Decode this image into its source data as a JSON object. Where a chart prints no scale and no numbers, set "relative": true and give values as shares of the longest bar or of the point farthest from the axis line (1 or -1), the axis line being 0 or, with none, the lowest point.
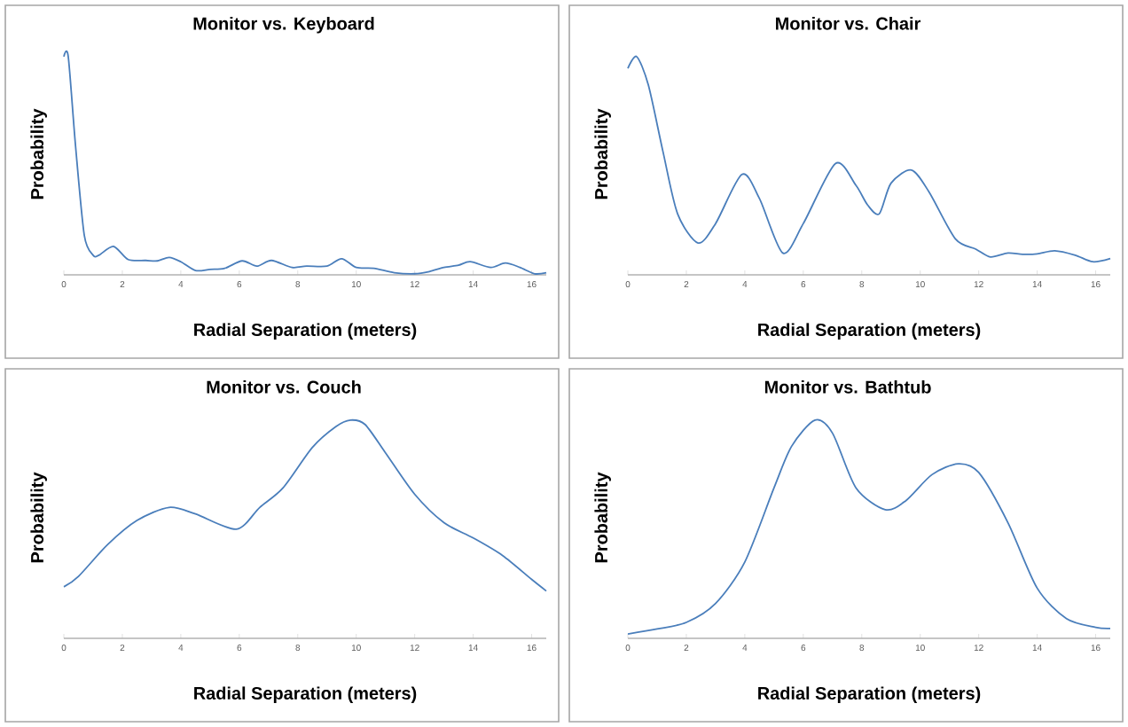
{
  "chart_data": [
    {
      "type": "line",
      "title": "Monitor vs. Keyboard",
      "xlabel": "Radial Separation (meters)",
      "ylabel": "Probability",
      "relative": true,
      "xlim": [
        0,
        16.5
      ],
      "xticks": [
        0,
        2,
        4,
        6,
        8,
        10,
        12,
        14,
        16
      ],
      "x": [
        0,
        0.15,
        0.4,
        0.7,
        1.0,
        1.2,
        1.7,
        2.2,
        2.8,
        3.2,
        3.6,
        4.0,
        4.5,
        5.0,
        5.5,
        6.1,
        6.6,
        7.1,
        7.8,
        8.3,
        9.0,
        9.5,
        10.0,
        10.6,
        11.3,
        12.0,
        12.5,
        13.0,
        13.5,
        13.9,
        14.6,
        15.1,
        15.6,
        16.1,
        16.5
      ],
      "series": [
        {
          "color": "#4a7ebb",
          "values": [
            1.0,
            1.0,
            0.59,
            0.18,
            0.09,
            0.09,
            0.13,
            0.07,
            0.066,
            0.064,
            0.08,
            0.06,
            0.02,
            0.025,
            0.03,
            0.064,
            0.04,
            0.066,
            0.034,
            0.04,
            0.04,
            0.074,
            0.034,
            0.03,
            0.01,
            0.005,
            0.015,
            0.034,
            0.044,
            0.06,
            0.034,
            0.054,
            0.034,
            0.005,
            0.01
          ]
        }
      ]
    },
    {
      "type": "line",
      "title": "Monitor vs. Chair",
      "xlabel": "Radial Separation (meters)",
      "ylabel": "Probability",
      "relative": true,
      "xlim": [
        0,
        16.5
      ],
      "xticks": [
        0,
        2,
        4,
        6,
        8,
        10,
        12,
        14,
        16
      ],
      "x": [
        0,
        0.3,
        0.7,
        1.2,
        1.7,
        2.4,
        3.0,
        3.9,
        4.5,
        5.3,
        6.0,
        7.1,
        7.8,
        8.2,
        8.6,
        9.0,
        9.7,
        10.3,
        11.2,
        11.9,
        12.4,
        13.0,
        13.5,
        14.0,
        14.6,
        15.3,
        15.9,
        16.5
      ],
      "series": [
        {
          "color": "#4a7ebb",
          "values": [
            0.946,
            1.0,
            0.87,
            0.565,
            0.28,
            0.146,
            0.235,
            0.46,
            0.35,
            0.1,
            0.235,
            0.51,
            0.41,
            0.32,
            0.28,
            0.42,
            0.48,
            0.38,
            0.165,
            0.118,
            0.082,
            0.1,
            0.094,
            0.096,
            0.11,
            0.09,
            0.06,
            0.075
          ]
        }
      ]
    },
    {
      "type": "line",
      "title": "Monitor vs. Couch",
      "xlabel": "Radial Separation (meters)",
      "ylabel": "Probability",
      "relative": true,
      "xlim": [
        0,
        16.5
      ],
      "xticks": [
        0,
        2,
        4,
        6,
        8,
        10,
        12,
        14,
        16
      ],
      "x": [
        0,
        0.5,
        1.5,
        2.5,
        3.6,
        4.5,
        5.9,
        6.7,
        7.5,
        8.5,
        9.3,
        9.8,
        10.3,
        11.0,
        12.0,
        13.0,
        14.0,
        15.0,
        16.0,
        16.5
      ],
      "series": [
        {
          "color": "#4a7ebb",
          "values": [
            0.236,
            0.284,
            0.43,
            0.54,
            0.6,
            0.57,
            0.5,
            0.6,
            0.69,
            0.875,
            0.97,
            1.0,
            0.98,
            0.85,
            0.66,
            0.53,
            0.46,
            0.38,
            0.27,
            0.217
          ]
        }
      ]
    },
    {
      "type": "line",
      "title": "Monitor vs. Bathtub",
      "xlabel": "Radial Separation (meters)",
      "ylabel": "Probability",
      "relative": true,
      "xlim": [
        0,
        16.5
      ],
      "xticks": [
        0,
        2,
        4,
        6,
        8,
        10,
        12,
        14,
        16
      ],
      "x": [
        0,
        1,
        2,
        3,
        4,
        5,
        5.6,
        6.4,
        7.0,
        7.8,
        8.8,
        9.5,
        10.4,
        11.3,
        12.0,
        13.0,
        14.0,
        15.0,
        16.0,
        16.5
      ],
      "series": [
        {
          "color": "#4a7ebb",
          "values": [
            0.02,
            0.043,
            0.073,
            0.16,
            0.35,
            0.69,
            0.88,
            1.0,
            0.94,
            0.69,
            0.59,
            0.63,
            0.75,
            0.8,
            0.76,
            0.53,
            0.23,
            0.09,
            0.05,
            0.045
          ]
        }
      ]
    }
  ]
}
